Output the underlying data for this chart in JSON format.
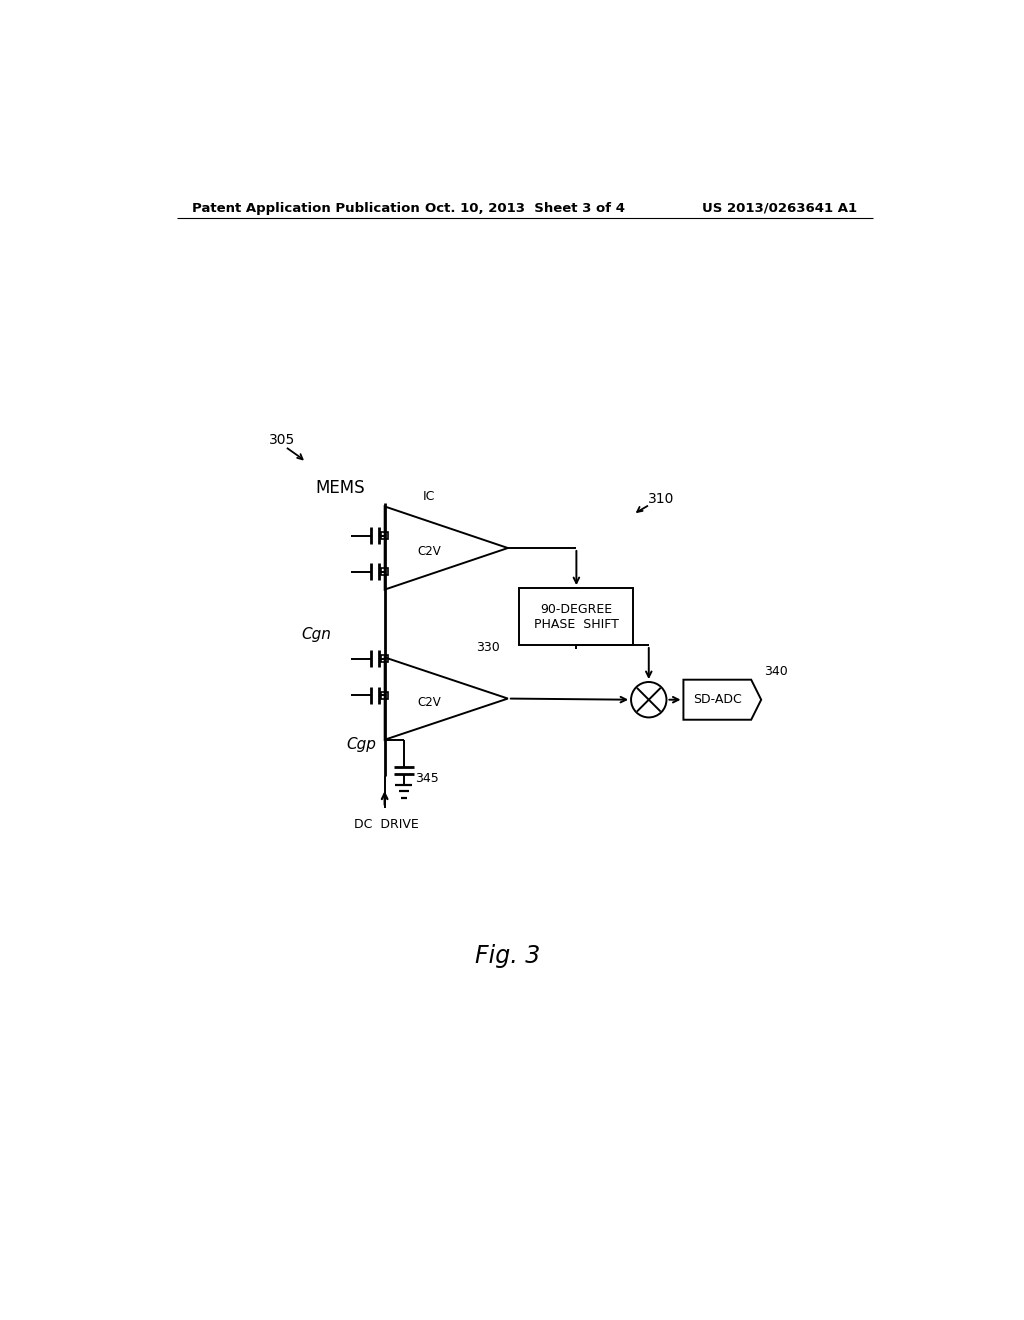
{
  "bg_color": "#ffffff",
  "header_left": "Patent Application Publication",
  "header_center": "Oct. 10, 2013  Sheet 3 of 4",
  "header_right": "US 2013/0263641 A1",
  "fig_label": "Fig. 3",
  "label_305": "305",
  "label_310": "310",
  "label_mems": "MEMS",
  "label_ic": "IC",
  "label_c2v_top": "C2V",
  "label_c2v_bottom": "C2V",
  "label_cgn": "Cgn",
  "label_cgp": "Cgp",
  "label_330": "330",
  "label_340": "340",
  "label_345": "345",
  "label_phase": "90-DEGREE\nPHASE  SHIFT",
  "label_sdadc": "SD-ADC",
  "label_dc_drive": "DC  DRIVE"
}
